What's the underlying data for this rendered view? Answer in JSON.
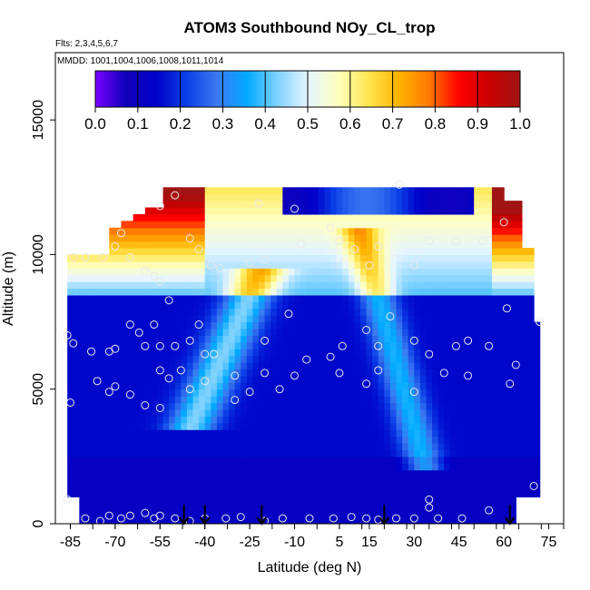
{
  "chart_data": {
    "type": "heatmap",
    "title": "ATOM3 Southbound NOy_CL_trop",
    "flights_note": "Flts: 2,3,4,5,6,7",
    "dates_note": "MMDD: 1001,1004,1006,1008,1011,1014",
    "xlabel": "Latitude (deg N)",
    "ylabel": "Altitude (m)",
    "xlim": [
      -90,
      80
    ],
    "ylim": [
      0,
      17500
    ],
    "x_ticks": [
      -85,
      -70,
      -55,
      -40,
      -25,
      -10,
      5,
      15,
      30,
      45,
      60,
      75
    ],
    "x_tick_labels": [
      "-85",
      "-70",
      "-55",
      "-40",
      "-25",
      "-10",
      "5",
      "15",
      "30",
      "45",
      "60",
      "75"
    ],
    "y_ticks": [
      0,
      5000,
      10000,
      15000
    ],
    "y_tick_labels": [
      "0",
      "5000",
      "10000",
      "15000"
    ],
    "colorbar": {
      "min": 0.0,
      "max": 1.0,
      "ticks": [
        0.0,
        0.1,
        0.2,
        0.3,
        0.4,
        0.5,
        0.6,
        0.7,
        0.8,
        0.9,
        1.0
      ],
      "tick_labels": [
        "0.0",
        "0.1",
        "0.2",
        "0.3",
        "0.4",
        "0.5",
        "0.6",
        "0.7",
        "0.8",
        "0.9",
        "1.0"
      ],
      "colors": [
        "#7a00ff",
        "#1000ba",
        "#0000c8",
        "#0a3ee6",
        "#3c78f0",
        "#00aaff",
        "#80d2ff",
        "#e6f5ff",
        "#ffffc0",
        "#ffe650",
        "#ffb400",
        "#ff7800",
        "#ff0000",
        "#c80000",
        "#a01414"
      ]
    },
    "data_extent": {
      "lat_min": -86,
      "lat_max": 72,
      "alt_min": 0,
      "alt_max": 12500
    },
    "profile_arrows_lat": [
      -47,
      -40,
      -21,
      20,
      62
    ],
    "observations": [
      [
        -84,
        9900
      ],
      [
        -80,
        9900
      ],
      [
        -74,
        9900
      ],
      [
        -70,
        10300
      ],
      [
        -68,
        10800
      ],
      [
        -65,
        9900
      ],
      [
        -60,
        9400
      ],
      [
        -57,
        9200
      ],
      [
        -55,
        9000
      ],
      [
        -52,
        8300
      ],
      [
        -45,
        10600
      ],
      [
        -42,
        10200
      ],
      [
        -38,
        9600
      ],
      [
        -35,
        9500
      ],
      [
        -25,
        9700
      ],
      [
        -20,
        9800
      ],
      [
        -55,
        11800
      ],
      [
        -50,
        12200
      ],
      [
        -22,
        11900
      ],
      [
        -10,
        11700
      ],
      [
        2,
        11000
      ],
      [
        -8,
        10400
      ],
      [
        5,
        10500
      ],
      [
        10,
        10200
      ],
      [
        15,
        9600
      ],
      [
        18,
        10300
      ],
      [
        25,
        12600
      ],
      [
        30,
        9600
      ],
      [
        35,
        10500
      ],
      [
        44,
        10500
      ],
      [
        53,
        10500
      ],
      [
        60,
        11200
      ],
      [
        61,
        8000
      ],
      [
        -86,
        7000
      ],
      [
        -84,
        6700
      ],
      [
        -78,
        6400
      ],
      [
        -72,
        6400
      ],
      [
        -70,
        6500
      ],
      [
        -65,
        7400
      ],
      [
        -62,
        7100
      ],
      [
        -60,
        6600
      ],
      [
        -57,
        7400
      ],
      [
        -55,
        6600
      ],
      [
        -50,
        6600
      ],
      [
        -45,
        6800
      ],
      [
        -42,
        7400
      ],
      [
        -40,
        6300
      ],
      [
        -37,
        6300
      ],
      [
        -30,
        5500
      ],
      [
        -20,
        6800
      ],
      [
        -12,
        7800
      ],
      [
        -6,
        6100
      ],
      [
        2,
        6200
      ],
      [
        6,
        6600
      ],
      [
        14,
        7200
      ],
      [
        18,
        6600
      ],
      [
        22,
        7700
      ],
      [
        30,
        6800
      ],
      [
        35,
        6300
      ],
      [
        44,
        6600
      ],
      [
        48,
        6800
      ],
      [
        55,
        6600
      ],
      [
        64,
        5900
      ],
      [
        72,
        7500
      ],
      [
        -76,
        5300
      ],
      [
        -72,
        4900
      ],
      [
        -70,
        5100
      ],
      [
        -65,
        4800
      ],
      [
        -60,
        4400
      ],
      [
        -55,
        5700
      ],
      [
        -52,
        5400
      ],
      [
        -48,
        5700
      ],
      [
        -45,
        5000
      ],
      [
        -40,
        5300
      ],
      [
        -30,
        4600
      ],
      [
        -25,
        4900
      ],
      [
        -20,
        5600
      ],
      [
        -15,
        5000
      ],
      [
        -10,
        5500
      ],
      [
        5,
        5600
      ],
      [
        14,
        5200
      ],
      [
        18,
        5700
      ],
      [
        30,
        4900
      ],
      [
        40,
        5600
      ],
      [
        48,
        5500
      ],
      [
        62,
        5200
      ],
      [
        -85,
        4500
      ],
      [
        -55,
        4300
      ],
      [
        35,
        900
      ],
      [
        35,
        600
      ],
      [
        70,
        1400
      ],
      [
        55,
        500
      ],
      [
        -86,
        900
      ],
      [
        -80,
        200
      ],
      [
        -75,
        100
      ],
      [
        -72,
        300
      ],
      [
        -68,
        200
      ],
      [
        -65,
        300
      ],
      [
        -60,
        400
      ],
      [
        -57,
        200
      ],
      [
        -55,
        300
      ],
      [
        -50,
        200
      ],
      [
        -45,
        100
      ],
      [
        -40,
        200
      ],
      [
        -33,
        200
      ],
      [
        -28,
        250
      ],
      [
        -20,
        100
      ],
      [
        -14,
        200
      ],
      [
        -5,
        200
      ],
      [
        3,
        200
      ],
      [
        9,
        250
      ],
      [
        14,
        200
      ],
      [
        18,
        150
      ],
      [
        24,
        200
      ],
      [
        30,
        200
      ],
      [
        38,
        200
      ],
      [
        46,
        200
      ]
    ]
  }
}
